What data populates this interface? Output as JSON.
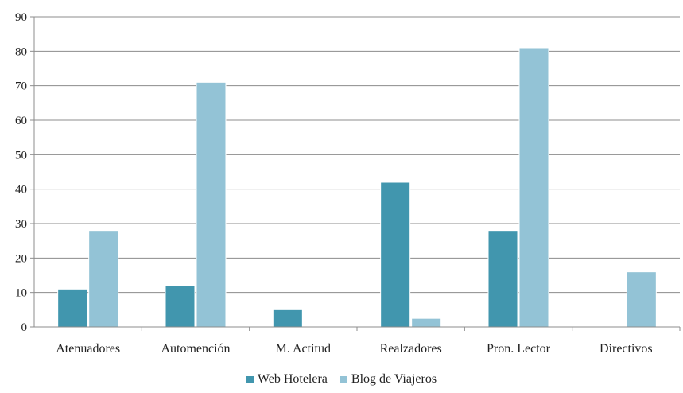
{
  "chart_data": {
    "type": "bar",
    "categories": [
      "Atenuadores",
      "Automención",
      "M. Actitud",
      "Realzadores",
      "Pron. Lector",
      "Directivos"
    ],
    "series": [
      {
        "name": "Web Hotelera",
        "color": "#4196ae",
        "values": [
          11,
          12,
          5,
          42,
          28,
          0
        ]
      },
      {
        "name": "Blog de Viajeros",
        "color": "#93c3d6",
        "values": [
          28,
          71,
          0.2,
          2.5,
          81,
          16
        ]
      }
    ],
    "ylim": [
      0,
      90
    ],
    "yticks": [
      "0",
      "10",
      "20",
      "30",
      "40",
      "50",
      "60",
      "70",
      "80",
      "90"
    ],
    "grid": true,
    "legend": "bottom",
    "title": "",
    "xlabel": "",
    "ylabel": ""
  }
}
